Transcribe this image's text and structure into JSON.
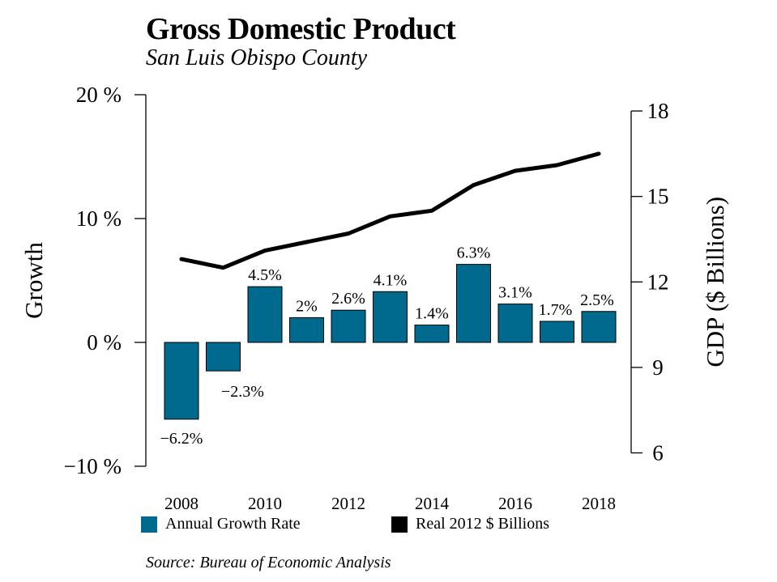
{
  "title": "Gross Domestic Product",
  "subtitle": "San Luis Obispo County",
  "source": "Source: Bureau of Economic Analysis",
  "colors": {
    "bar": "#006a8e",
    "line": "#000000"
  },
  "legend": [
    {
      "label": "Annual Growth Rate",
      "swatch": "#006a8e"
    },
    {
      "label": "Real 2012 $ Billions",
      "swatch": "#000000"
    }
  ],
  "chart_data": {
    "type": "bar+line",
    "title": "Gross Domestic Product",
    "subtitle": "San Luis Obispo County",
    "x": [
      2008,
      2009,
      2010,
      2011,
      2012,
      2013,
      2014,
      2015,
      2016,
      2017,
      2018
    ],
    "x_tick_labels": [
      "2008",
      "2010",
      "2012",
      "2014",
      "2016",
      "2018"
    ],
    "left_axis": {
      "label": "Growth",
      "ylim": [
        -10,
        20
      ],
      "ticks": [
        -10,
        0,
        10,
        20
      ],
      "tick_labels": [
        "−10 %",
        "0 %",
        "10 %",
        "20 %"
      ]
    },
    "right_axis": {
      "label": "GDP ($ Billions)",
      "ylim": [
        6,
        18
      ],
      "ticks": [
        6,
        9,
        12,
        15,
        18
      ],
      "tick_labels": [
        "6",
        "9",
        "12",
        "15",
        "18"
      ]
    },
    "series": [
      {
        "name": "Annual Growth Rate",
        "type": "bar",
        "axis": "left",
        "values": [
          -6.2,
          -2.3,
          4.5,
          2.0,
          2.6,
          4.1,
          1.4,
          6.3,
          3.1,
          1.7,
          2.5
        ],
        "data_labels": [
          "−6.2%",
          "−2.3%",
          "4.5%",
          "2%",
          "2.6%",
          "4.1%",
          "1.4%",
          "6.3%",
          "3.1%",
          "1.7%",
          "2.5%"
        ]
      },
      {
        "name": "Real 2012 $ Billions",
        "type": "line",
        "axis": "right",
        "values": [
          12.8,
          12.5,
          13.1,
          13.4,
          13.7,
          14.3,
          14.5,
          15.4,
          15.9,
          16.1,
          16.5
        ]
      }
    ],
    "grid": false,
    "legend_position": "bottom"
  }
}
